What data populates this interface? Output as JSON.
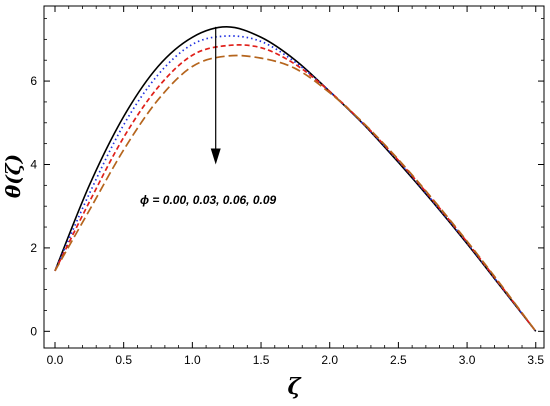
{
  "chart_data": {
    "type": "line",
    "xlabel": "ζ",
    "ylabel": "θ(ζ)",
    "xlim": [
      -0.08,
      3.56
    ],
    "ylim": [
      -0.4,
      7.8
    ],
    "x_ticks": [
      "0.0",
      "0.5",
      "1.0",
      "1.5",
      "2.0",
      "2.5",
      "3.0",
      "3.5"
    ],
    "y_ticks": [
      "0",
      "2",
      "4",
      "6"
    ],
    "grid": false,
    "series": [
      {
        "color": "#000000",
        "dash": "solid",
        "x": [
          0.0,
          0.25,
          0.5,
          0.75,
          1.0,
          1.25,
          1.5,
          1.75,
          2.0,
          2.25,
          2.5,
          2.75,
          3.0,
          3.25,
          3.5
        ],
        "y": [
          1.45,
          3.5,
          5.15,
          6.35,
          7.05,
          7.3,
          7.05,
          6.5,
          5.75,
          4.95,
          4.05,
          3.1,
          2.1,
          1.05,
          0.0
        ]
      },
      {
        "color": "#1f2fe0",
        "dash": "dotted",
        "x": [
          0.0,
          0.25,
          0.5,
          0.75,
          1.0,
          1.25,
          1.5,
          1.75,
          2.0,
          2.25,
          2.5,
          2.75,
          3.0,
          3.25,
          3.5
        ],
        "y": [
          1.45,
          3.3,
          4.95,
          6.15,
          6.88,
          7.08,
          6.95,
          6.45,
          5.75,
          4.95,
          4.08,
          3.12,
          2.12,
          1.06,
          0.0
        ]
      },
      {
        "color": "#e0201a",
        "dash": "dashed",
        "x": [
          0.0,
          0.25,
          0.5,
          0.75,
          1.0,
          1.25,
          1.5,
          1.75,
          2.0,
          2.25,
          2.5,
          2.75,
          3.0,
          3.25,
          3.5
        ],
        "y": [
          1.45,
          3.1,
          4.65,
          5.85,
          6.62,
          6.85,
          6.8,
          6.4,
          5.75,
          4.97,
          4.1,
          3.15,
          2.14,
          1.08,
          0.0
        ]
      },
      {
        "color": "#b5651d",
        "dash": "longdash",
        "x": [
          0.0,
          0.25,
          0.5,
          0.75,
          1.0,
          1.25,
          1.5,
          1.75,
          2.0,
          2.25,
          2.5,
          2.75,
          3.0,
          3.25,
          3.5
        ],
        "y": [
          1.45,
          2.9,
          4.35,
          5.55,
          6.35,
          6.6,
          6.55,
          6.3,
          5.72,
          4.98,
          4.12,
          3.17,
          2.16,
          1.1,
          0.0
        ]
      }
    ],
    "annotation": {
      "text": "ϕ = 0.00, 0.03, 0.06, 0.09",
      "arrow_from": [
        1.17,
        7.3
      ],
      "arrow_to": [
        1.17,
        4.0
      ]
    }
  }
}
